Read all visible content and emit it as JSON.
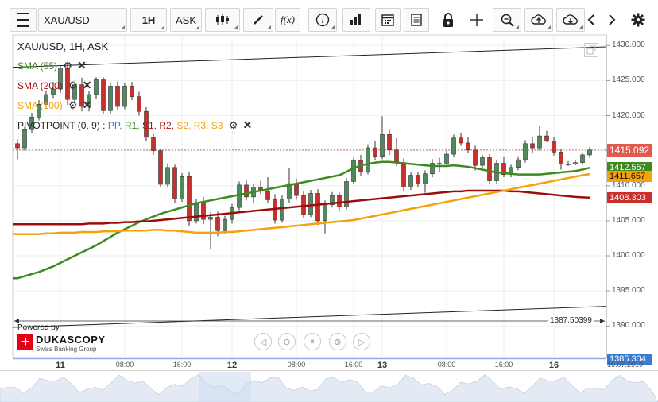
{
  "toolbar": {
    "symbol": "XAU/USD",
    "timeframe": "1H",
    "side": "ASK",
    "fx_label": "f(x)",
    "menu_icon": "hamburger-icon",
    "candle_icon": "candlestick-icon",
    "draw_icon": "pencil-icon",
    "info_icon": "info-icon",
    "volume_icon": "bar-chart-icon",
    "calendar_icon": "calendar-icon",
    "report_icon": "report-icon",
    "lock_icon": "lock-icon",
    "crosshair_icon": "crosshair-icon",
    "zoom_icon": "zoom-icon",
    "upload_icon": "cloud-upload-icon",
    "download_icon": "cloud-download-icon",
    "prev_icon": "chevron-left-icon",
    "next_icon": "chevron-right-icon",
    "settings_icon": "gear-icon"
  },
  "legend": {
    "title": "XAU/USD, 1H, ASK",
    "sma55": "SMA (55)",
    "sma200": "SMA (200)",
    "sma100": "SMA (100)",
    "pivot_label": "PIVOTPOINT (0, 9)",
    "pivot_sep": " : ",
    "pp": "PP,",
    "r1": "R1,",
    "s1": "S1,",
    "r2": "R2,",
    "s2": "S2,",
    "r3": "R3,",
    "s3": "S3"
  },
  "colors": {
    "sma55": "#3d8a1e",
    "sma200": "#9b0d0d",
    "sma100": "#f5a20a",
    "pp": "#3a7bd5",
    "r1": "#3d8a1e",
    "s1": "#b01010",
    "r2": "#b01010",
    "s2": "#f5a20a",
    "r3": "#f5a20a",
    "s3": "#f5a20a",
    "bull": "#4e8a5c",
    "bear": "#c9302c",
    "last_price_bg": "#e05a4e",
    "sma55_tag_bg": "#3d8a1e",
    "sma100_tag_bg": "#f5a20a",
    "sma200_tag_bg": "#c9302c",
    "low_tag_bg": "#3a7bd5"
  },
  "price_tags": {
    "last": "1415.092",
    "sma55": "1412.557",
    "sma100": "1411.657",
    "sma200": "1408.303",
    "low_marker": "1385.304",
    "measure": "1387.50399"
  },
  "branding": {
    "powered": "Powered by",
    "brand": "DUKASCOPY",
    "tagline": "Swiss Banking Group"
  },
  "date_stamp": "16.07.2019",
  "chart_data": {
    "type": "candlestick",
    "title": "XAU/USD, 1H, ASK",
    "ylim": [
      1385.5,
      1431.5
    ],
    "yticks": [
      1390,
      1395,
      1400,
      1405,
      1410,
      1415,
      1420,
      1425,
      1430
    ],
    "ytick_labels": [
      "1390.000",
      "1395.000",
      "1400.000",
      "1405.000",
      "1410.000",
      "1415.000",
      "1420.000",
      "1425.000",
      "1430.000"
    ],
    "xticks": [
      {
        "label": "11",
        "bold": true,
        "bar": 6
      },
      {
        "label": "08:00",
        "bold": false,
        "bar": 15
      },
      {
        "label": "16:00",
        "bold": false,
        "bar": 23
      },
      {
        "label": "12",
        "bold": true,
        "bar": 30
      },
      {
        "label": "08:00",
        "bold": false,
        "bar": 39
      },
      {
        "label": "16:00",
        "bold": false,
        "bar": 47
      },
      {
        "label": "13",
        "bold": true,
        "bar": 51
      },
      {
        "label": "08:00",
        "bold": false,
        "bar": 60
      },
      {
        "label": "16:00",
        "bold": false,
        "bar": 68
      },
      {
        "label": "16",
        "bold": true,
        "bar": 75
      }
    ],
    "grid": true,
    "candles": [
      [
        1416.0,
        1416.6,
        1413.8,
        1415.4
      ],
      [
        1415.4,
        1418.4,
        1415.0,
        1418.0
      ],
      [
        1418.0,
        1420.4,
        1417.5,
        1419.8
      ],
      [
        1419.8,
        1422.2,
        1419.3,
        1421.6
      ],
      [
        1421.6,
        1423.6,
        1421.0,
        1423.0
      ],
      [
        1423.0,
        1424.8,
        1422.5,
        1423.8
      ],
      [
        1423.8,
        1427.2,
        1423.2,
        1426.8
      ],
      [
        1426.8,
        1427.6,
        1421.5,
        1422.3
      ],
      [
        1422.3,
        1424.9,
        1421.8,
        1424.4
      ],
      [
        1424.4,
        1425.4,
        1420.6,
        1421.3
      ],
      [
        1421.3,
        1423.5,
        1420.6,
        1423.0
      ],
      [
        1423.0,
        1425.5,
        1422.4,
        1425.1
      ],
      [
        1425.1,
        1425.5,
        1420.3,
        1420.7
      ],
      [
        1420.7,
        1424.6,
        1420.2,
        1424.2
      ],
      [
        1424.2,
        1424.9,
        1420.8,
        1421.3
      ],
      [
        1421.3,
        1424.6,
        1420.9,
        1424.2
      ],
      [
        1424.2,
        1424.8,
        1422.2,
        1422.7
      ],
      [
        1422.7,
        1423.4,
        1420.0,
        1420.6
      ],
      [
        1420.6,
        1421.2,
        1416.3,
        1416.9
      ],
      [
        1416.9,
        1417.4,
        1414.4,
        1415.0
      ],
      [
        1415.0,
        1415.3,
        1409.8,
        1410.2
      ],
      [
        1410.2,
        1413.2,
        1409.7,
        1412.6
      ],
      [
        1412.6,
        1413.0,
        1407.6,
        1408.1
      ],
      [
        1408.1,
        1411.8,
        1407.7,
        1411.3
      ],
      [
        1411.3,
        1411.9,
        1404.3,
        1405.0
      ],
      [
        1405.0,
        1408.1,
        1404.6,
        1407.6
      ],
      [
        1407.6,
        1408.4,
        1404.5,
        1405.2
      ],
      [
        1405.2,
        1406.2,
        1401.0,
        1405.5
      ],
      [
        1405.5,
        1406.3,
        1402.8,
        1403.6
      ],
      [
        1403.6,
        1405.7,
        1403.2,
        1405.2
      ],
      [
        1405.2,
        1407.4,
        1404.6,
        1406.9
      ],
      [
        1406.9,
        1410.6,
        1406.5,
        1410.1
      ],
      [
        1410.1,
        1410.9,
        1407.9,
        1408.4
      ],
      [
        1408.4,
        1410.3,
        1407.5,
        1409.8
      ],
      [
        1409.8,
        1410.7,
        1408.8,
        1409.2
      ],
      [
        1409.2,
        1411.2,
        1407.6,
        1408.0
      ],
      [
        1408.0,
        1408.8,
        1404.6,
        1405.1
      ],
      [
        1405.1,
        1408.6,
        1404.7,
        1408.1
      ],
      [
        1408.1,
        1412.5,
        1407.6,
        1410.3
      ],
      [
        1410.3,
        1411.0,
        1408.0,
        1408.6
      ],
      [
        1408.6,
        1409.3,
        1405.4,
        1405.9
      ],
      [
        1405.9,
        1409.4,
        1405.5,
        1408.9
      ],
      [
        1408.9,
        1409.5,
        1404.4,
        1405.0
      ],
      [
        1405.0,
        1407.9,
        1403.2,
        1407.3
      ],
      [
        1407.3,
        1409.1,
        1406.9,
        1408.6
      ],
      [
        1408.6,
        1409.0,
        1406.5,
        1407.0
      ],
      [
        1407.0,
        1411.1,
        1406.6,
        1410.6
      ],
      [
        1410.6,
        1414.0,
        1410.2,
        1413.6
      ],
      [
        1413.6,
        1414.4,
        1411.4,
        1412.0
      ],
      [
        1412.0,
        1415.9,
        1411.6,
        1415.4
      ],
      [
        1415.4,
        1416.4,
        1413.6,
        1414.2
      ],
      [
        1414.2,
        1419.9,
        1413.8,
        1417.3
      ],
      [
        1417.3,
        1418.0,
        1414.4,
        1415.1
      ],
      [
        1415.1,
        1416.8,
        1412.8,
        1413.3
      ],
      [
        1413.3,
        1413.9,
        1409.2,
        1409.8
      ],
      [
        1409.8,
        1412.0,
        1409.4,
        1411.5
      ],
      [
        1411.5,
        1412.0,
        1409.8,
        1410.3
      ],
      [
        1410.3,
        1412.2,
        1409.0,
        1411.7
      ],
      [
        1411.7,
        1413.8,
        1411.2,
        1413.2
      ],
      [
        1413.2,
        1414.0,
        1411.9,
        1413.1
      ],
      [
        1413.1,
        1415.0,
        1412.7,
        1414.5
      ],
      [
        1414.5,
        1417.3,
        1414.1,
        1416.8
      ],
      [
        1416.8,
        1417.5,
        1415.7,
        1416.1
      ],
      [
        1416.1,
        1416.9,
        1414.6,
        1415.1
      ],
      [
        1415.1,
        1415.7,
        1412.2,
        1412.9
      ],
      [
        1412.9,
        1414.4,
        1412.5,
        1414.0
      ],
      [
        1414.0,
        1414.5,
        1410.2,
        1410.7
      ],
      [
        1410.7,
        1413.7,
        1410.3,
        1413.2
      ],
      [
        1413.2,
        1414.2,
        1411.2,
        1411.6
      ],
      [
        1411.6,
        1413.0,
        1411.2,
        1412.6
      ],
      [
        1412.6,
        1414.2,
        1412.2,
        1413.7
      ],
      [
        1413.7,
        1416.5,
        1413.3,
        1416.0
      ],
      [
        1416.0,
        1416.9,
        1414.6,
        1415.4
      ],
      [
        1415.4,
        1418.6,
        1415.0,
        1417.1
      ],
      [
        1417.1,
        1417.8,
        1416.2,
        1416.4
      ],
      [
        1416.4,
        1416.9,
        1414.3,
        1414.8
      ],
      [
        1414.8,
        1415.2,
        1412.3,
        1413.1
      ],
      [
        1413.1,
        1413.5,
        1412.8,
        1413.1
      ],
      [
        1413.1,
        1413.6,
        1412.9,
        1413.3
      ],
      [
        1413.3,
        1414.7,
        1413.0,
        1414.4
      ],
      [
        1414.4,
        1415.5,
        1414.0,
        1415.1
      ]
    ],
    "series": [
      {
        "name": "SMA (55)",
        "color": "#3d8a1e",
        "values": [
          1396.8,
          1397.1,
          1397.4,
          1397.7,
          1398.1,
          1398.5,
          1399.0,
          1399.5,
          1400.0,
          1400.5,
          1401.0,
          1401.5,
          1402.1,
          1402.7,
          1403.3,
          1403.8,
          1404.3,
          1404.8,
          1405.2,
          1405.6,
          1406.0,
          1406.3,
          1406.6,
          1406.9,
          1407.2,
          1407.5,
          1407.7,
          1407.9,
          1408.1,
          1408.3,
          1408.5,
          1408.7,
          1408.9,
          1409.1,
          1409.3,
          1409.5,
          1409.7,
          1409.9,
          1410.1,
          1410.3,
          1410.5,
          1410.7,
          1410.9,
          1411.1,
          1411.3,
          1411.5,
          1412.0,
          1412.5,
          1412.9,
          1413.1,
          1413.3,
          1413.4,
          1413.4,
          1413.3,
          1413.2,
          1413.1,
          1413.0,
          1412.9,
          1412.8,
          1412.8,
          1412.8,
          1412.9,
          1412.8,
          1412.7,
          1412.5,
          1412.3,
          1412.1,
          1411.9,
          1411.8,
          1411.7,
          1411.6,
          1411.6,
          1411.6,
          1411.6,
          1411.7,
          1411.8,
          1411.9,
          1412.0,
          1412.1,
          1412.3,
          1412.56
        ]
      },
      {
        "name": "SMA (200)",
        "color": "#9b0d0d",
        "values": [
          1404.5,
          1404.5,
          1404.5,
          1404.5,
          1404.5,
          1404.5,
          1404.5,
          1404.5,
          1404.5,
          1404.5,
          1404.6,
          1404.6,
          1404.6,
          1404.7,
          1404.7,
          1404.8,
          1404.8,
          1404.9,
          1404.9,
          1405.0,
          1405.1,
          1405.2,
          1405.3,
          1405.4,
          1405.5,
          1405.6,
          1405.7,
          1405.8,
          1405.9,
          1406.0,
          1406.1,
          1406.2,
          1406.3,
          1406.4,
          1406.5,
          1406.6,
          1406.7,
          1406.8,
          1406.9,
          1407.0,
          1407.1,
          1407.2,
          1407.3,
          1407.4,
          1407.5,
          1407.6,
          1407.7,
          1407.8,
          1407.9,
          1408.0,
          1408.1,
          1408.2,
          1408.3,
          1408.4,
          1408.5,
          1408.6,
          1408.7,
          1408.8,
          1408.9,
          1409.0,
          1409.1,
          1409.2,
          1409.2,
          1409.3,
          1409.3,
          1409.3,
          1409.3,
          1409.3,
          1409.3,
          1409.2,
          1409.2,
          1409.1,
          1409.0,
          1408.9,
          1408.8,
          1408.7,
          1408.6,
          1408.5,
          1408.4,
          1408.35,
          1408.3
        ]
      },
      {
        "name": "SMA (100)",
        "color": "#f5a20a",
        "values": [
          1403.1,
          1403.1,
          1403.1,
          1403.1,
          1403.2,
          1403.2,
          1403.3,
          1403.3,
          1403.3,
          1403.4,
          1403.4,
          1403.4,
          1403.5,
          1403.5,
          1403.5,
          1403.6,
          1403.6,
          1403.6,
          1403.6,
          1403.7,
          1403.7,
          1403.6,
          1403.6,
          1403.5,
          1403.4,
          1403.3,
          1403.3,
          1403.3,
          1403.3,
          1403.4,
          1403.4,
          1403.5,
          1403.6,
          1403.7,
          1403.8,
          1403.9,
          1404.0,
          1404.1,
          1404.2,
          1404.3,
          1404.4,
          1404.5,
          1404.6,
          1404.7,
          1404.8,
          1404.9,
          1405.0,
          1405.1,
          1405.3,
          1405.5,
          1405.7,
          1405.9,
          1406.1,
          1406.3,
          1406.5,
          1406.7,
          1406.9,
          1407.1,
          1407.3,
          1407.5,
          1407.7,
          1407.9,
          1408.1,
          1408.3,
          1408.5,
          1408.7,
          1408.9,
          1409.1,
          1409.3,
          1409.5,
          1409.7,
          1409.9,
          1410.1,
          1410.3,
          1410.5,
          1410.7,
          1410.9,
          1411.1,
          1411.3,
          1411.5,
          1411.66
        ]
      }
    ],
    "channel": {
      "upper": {
        "x_bars": [
          0,
          80
        ],
        "y": [
          1426.9,
          1429.8
        ]
      },
      "lower": {
        "x_bars": [
          0,
          80
        ],
        "y": [
          1389.8,
          1392.8
        ]
      }
    },
    "last_price_line": 1415.092,
    "low_marker_line": 1385.304
  }
}
